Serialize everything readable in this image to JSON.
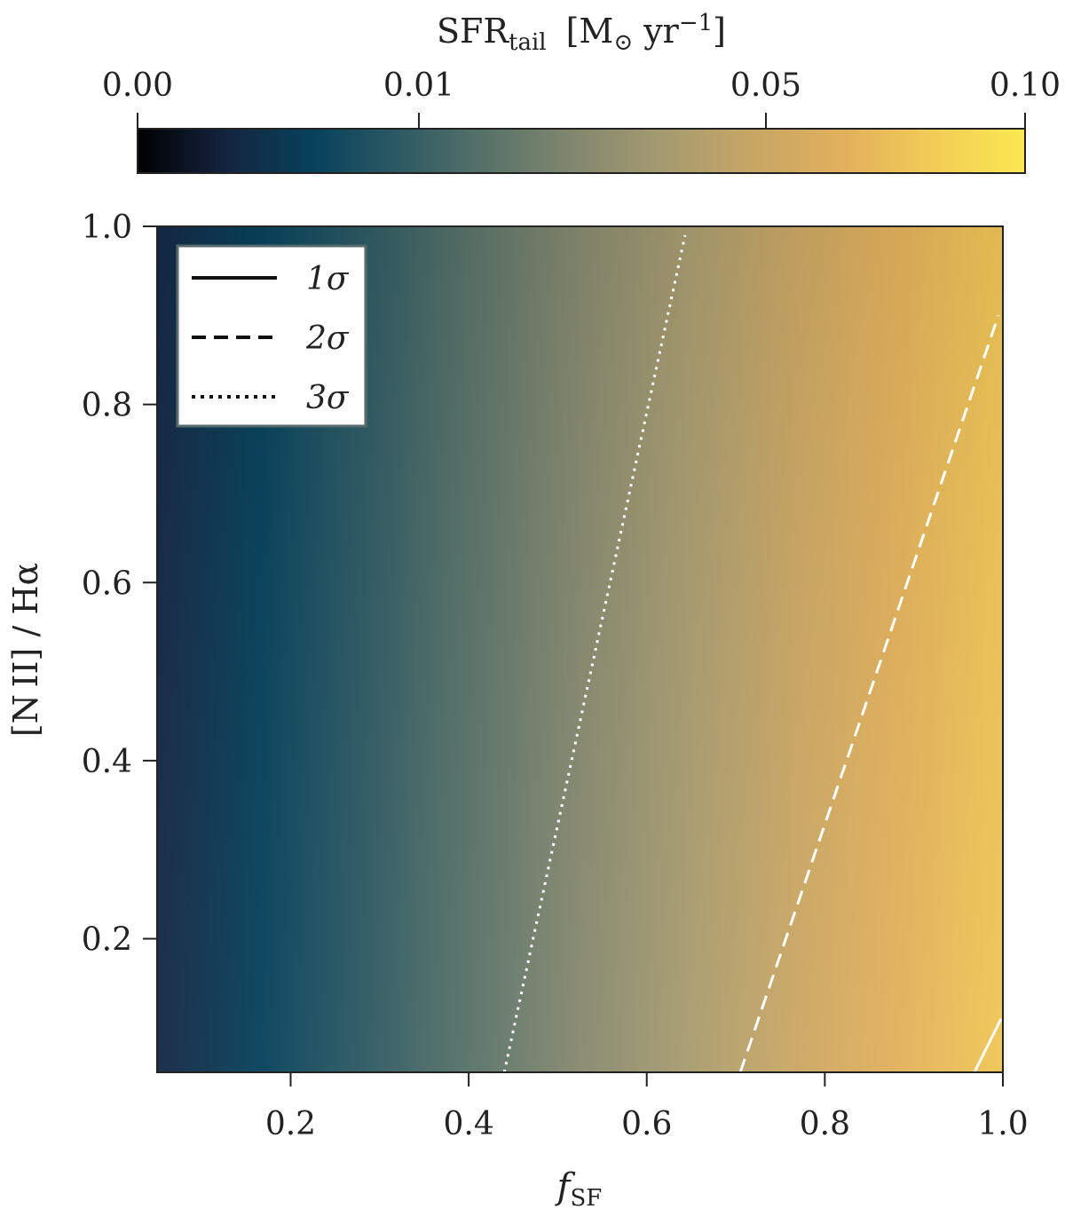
{
  "chart_data": {
    "type": "heatmap",
    "title": "",
    "xlabel": {
      "main": "f",
      "sub": "SF"
    },
    "ylabel": "[N II] / Hα",
    "xlim": [
      0.05,
      1.0
    ],
    "ylim": [
      0.05,
      1.0
    ],
    "xticks": [
      0.2,
      0.4,
      0.6,
      0.8,
      1.0
    ],
    "xtick_labels": [
      "0.2",
      "0.4",
      "0.6",
      "0.8",
      "1.0"
    ],
    "yticks": [
      0.2,
      0.4,
      0.6,
      0.8,
      1.0
    ],
    "ytick_labels": [
      "0.2",
      "0.4",
      "0.6",
      "0.8",
      "1.0"
    ],
    "grid": false,
    "colorbar": {
      "label": {
        "main": "SFR",
        "sub": "tail",
        "unit_open": "[M",
        "unit_sym": "⊙",
        "unit_yr": " yr",
        "unit_exp": "−1",
        "unit_close": "]"
      },
      "orientation": "horizontal",
      "placement": "top",
      "ticks": [
        0.0,
        0.01,
        0.05,
        0.1
      ],
      "tick_labels": [
        "0.00",
        "0.01",
        "0.05",
        "0.10"
      ],
      "range": [
        0.0,
        0.1
      ]
    },
    "colormap_stops": [
      "#000000",
      "#14243f",
      "#07425c",
      "#2f5b63",
      "#5b7469",
      "#86896f",
      "#a79c70",
      "#c9a765",
      "#e2b15c",
      "#f2cd56",
      "#fae851"
    ],
    "contours": [
      {
        "name": "1σ",
        "style": "solid",
        "color": "#ffffff",
        "points": [
          [
            0.968,
            0.05
          ],
          [
            0.998,
            0.11
          ]
        ]
      },
      {
        "name": "2σ",
        "style": "dashed",
        "color": "#ffffff",
        "points": [
          [
            0.705,
            0.05
          ],
          [
            0.995,
            0.9
          ]
        ]
      },
      {
        "name": "3σ",
        "style": "dotted",
        "color": "#ffffff",
        "points": [
          [
            0.44,
            0.05
          ],
          [
            0.643,
            0.99
          ]
        ]
      }
    ],
    "legend": {
      "placement": "top-left",
      "entries": [
        {
          "label": "1σ",
          "style": "solid"
        },
        {
          "label": "2σ",
          "style": "dashed"
        },
        {
          "label": "3σ",
          "style": "dotted"
        }
      ]
    }
  }
}
